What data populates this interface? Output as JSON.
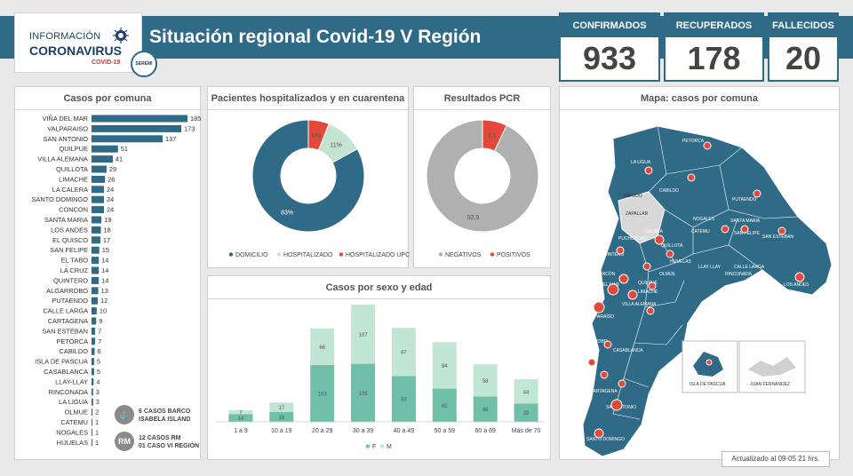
{
  "header": {
    "logo_line1": "INFORMACIÓN",
    "logo_line2": "CORONAVIRUS",
    "logo_sub": "COVID-19",
    "seal": "SEREMI",
    "title": "Situación regional Covid-19 V Región"
  },
  "kpis": [
    {
      "label": "CONFIRMADOS",
      "value": "933"
    },
    {
      "label": "RECUPERADOS",
      "value": "178"
    },
    {
      "label": "FALLECIDOS",
      "value": "20"
    }
  ],
  "panels": {
    "comuna_title": "Casos por comuna",
    "hosp_title": "Pacientes hospitalizados  y en cuarentena",
    "pcr_title": "Resultados PCR",
    "sexo_title": "Casos por sexo y edad",
    "map_title": "Mapa: casos por comuna"
  },
  "notes": [
    {
      "icon": "ship-icon",
      "text1": "6 CASOS BARCO",
      "text2": "ISABELA ISLAND"
    },
    {
      "icon_text": "RM",
      "text1": "12 CASOS RM",
      "text2": "01 CASO VI REGIÓN"
    }
  ],
  "updated": "Actualizado  al 09-05 21 hrs.",
  "colors": {
    "primary": "#2f6a86",
    "light": "#c3e4d0",
    "red": "#e2483b",
    "gray": "#b0b0b0",
    "teal": "#6fbfa9",
    "mint": "#c2e6d4"
  },
  "map": {
    "labels": [
      "PETORCA",
      "LA LIGUA",
      "CABILDO",
      "PAPUDO",
      "ZAPALLAR",
      "PUTAENDO",
      "NOGALES",
      "CATEMU",
      "SANTA MARIA",
      "SAN FELIPE",
      "SAN ESTEBAN",
      "LOS ANDES",
      "PUCHUNCAVÍ",
      "QUILLOTA",
      "CALERA",
      "LLAY LLAY",
      "RINCONADA",
      "CALLE LARGA",
      "QUINTERO",
      "CONCÓN",
      "HIJUELAS",
      "OLMUE",
      "LIMACHE",
      "VIÑA DEL MAR",
      "QUILPUÉ",
      "VILLA ALEMANA",
      "VALPARAÍSO",
      "CASABLANCA",
      "ALGARROBO",
      "EL QUISCO",
      "EL TABO",
      "CARTAGENA",
      "SAN ANTONIO",
      "SANTO DOMINGO",
      "ISLA DE PASCUA",
      "JUAN FERNÁNDEZ"
    ]
  },
  "chart_data": [
    {
      "type": "bar",
      "orientation": "horizontal",
      "title": "Casos por comuna",
      "categories": [
        "VIÑA DEL MAR",
        "VALPARAISO",
        "SAN ANTONIO",
        "QUILPUE",
        "VILLA ALEMANA",
        "QUILLOTA",
        "LIMACHE",
        "LA CALERA",
        "SANTO DOMINGO",
        "CONCON",
        "SANTA MARIA",
        "LOS ANDES",
        "EL QUISCO",
        "SAN FELIPE",
        "EL TABO",
        "LA CRUZ",
        "QUINTERO",
        "ALGARROBO",
        "PUTAENDO",
        "CALLE LARGA",
        "CARTAGENA",
        "SAN ESTEBAN",
        "PETORCA",
        "CABILDO",
        "ISLA DE PASCUA",
        "CASABLANCA",
        "LLAY-LLAY",
        "RINCONADA",
        "LA LIGUA",
        "OLMUE",
        "CATEMU",
        "NOGALES",
        "HIJUELAS"
      ],
      "values": [
        185,
        173,
        137,
        51,
        41,
        29,
        26,
        24,
        24,
        24,
        19,
        18,
        17,
        15,
        14,
        14,
        14,
        13,
        12,
        10,
        9,
        7,
        7,
        6,
        5,
        5,
        4,
        3,
        3,
        2,
        1,
        1,
        1
      ]
    },
    {
      "type": "pie",
      "title": "Pacientes hospitalizados  y en cuarentena",
      "categories": [
        "DOMICILIO",
        "HOSPITALIZADO",
        "HOSPITALIZADO UPC"
      ],
      "values": [
        83,
        11,
        6
      ],
      "labels": [
        "83%",
        "11%",
        "6%"
      ]
    },
    {
      "type": "pie",
      "title": "Resultados PCR",
      "categories": [
        "NEGATIVOS",
        "POSITIVOS"
      ],
      "values": [
        92.9,
        7.1
      ],
      "labels": [
        "92,9",
        "7,1"
      ]
    },
    {
      "type": "bar",
      "stacked": true,
      "title": "Casos por sexo y edad",
      "categories": [
        "1 a 9",
        "10 a 19",
        "20 a 29",
        "30 a 39",
        "40 a 49",
        "50 a 59",
        "60 a 69",
        "Más de 70"
      ],
      "series": [
        {
          "name": "F",
          "values": [
            14,
            18,
            103,
            105,
            83,
            60,
            46,
            33
          ]
        },
        {
          "name": "M",
          "values": [
            7,
            17,
            66,
            107,
            87,
            84,
            58,
            44
          ]
        }
      ]
    }
  ]
}
